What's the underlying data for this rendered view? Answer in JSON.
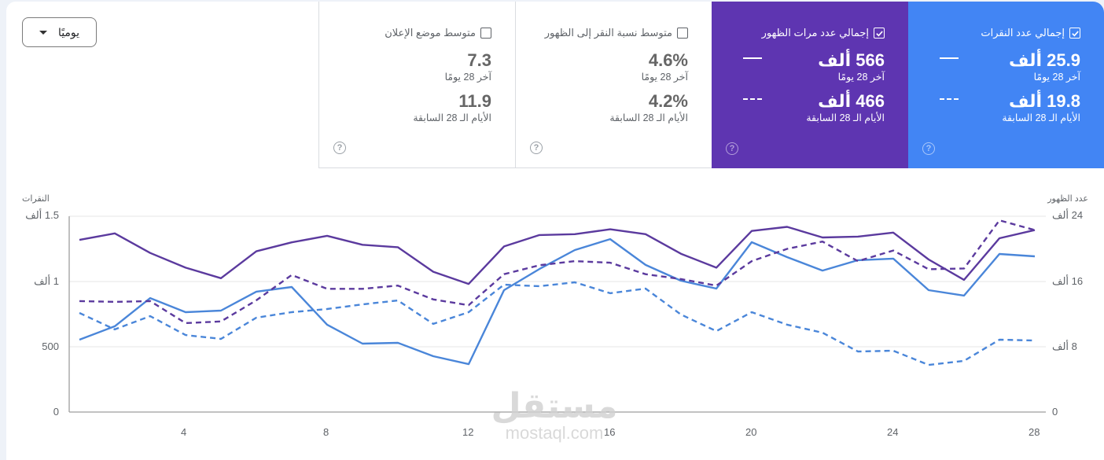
{
  "granularity_dropdown": {
    "selected": "يوميًا",
    "icon": "caret-down-icon"
  },
  "cards": [
    {
      "id": "clicks",
      "title": "إجمالي عدد النقرات",
      "checked": true,
      "color": "#4285f4",
      "current_value": "25.9 ألف",
      "current_label": "آخر 28 يومًا",
      "previous_value": "19.8 ألف",
      "previous_label": "الأيام الـ 28 السابقة",
      "help_icon": "help-circle-icon"
    },
    {
      "id": "impressions",
      "title": "إجمالي عدد مرات الظهور",
      "checked": true,
      "color": "#5e35b1",
      "current_value": "566 ألف",
      "current_label": "آخر 28 يومًا",
      "previous_value": "466 ألف",
      "previous_label": "الأيام الـ 28 السابقة",
      "help_icon": "help-circle-icon"
    },
    {
      "id": "ctr",
      "title": "متوسط نسبة النقر إلى الظهور",
      "checked": false,
      "color": "#ffffff",
      "current_value": "4.6%",
      "current_label": "آخر 28 يومًا",
      "previous_value": "4.2%",
      "previous_label": "الأيام الـ 28 السابقة",
      "help_icon": "help-circle-icon"
    },
    {
      "id": "position",
      "title": "متوسط موضع الإعلان",
      "checked": false,
      "color": "#ffffff",
      "current_value": "7.3",
      "current_label": "آخر 28 يومًا",
      "previous_value": "11.9",
      "previous_label": "الأيام الـ 28 السابقة",
      "help_icon": "help-circle-icon"
    }
  ],
  "chart_data": {
    "type": "line",
    "title": "",
    "x": [
      1,
      2,
      3,
      4,
      5,
      6,
      7,
      8,
      9,
      10,
      11,
      12,
      13,
      14,
      15,
      16,
      17,
      18,
      19,
      20,
      21,
      22,
      23,
      24,
      25,
      26,
      27,
      28
    ],
    "xticks": [
      "4",
      "8",
      "12",
      "16",
      "20",
      "24",
      "28"
    ],
    "xlabel": "",
    "ylabel_left": "النقرات",
    "ylabel_right": "عدد الظهور",
    "yticks_left": [
      "0",
      "500",
      "1 ألف",
      "1.5 ألف"
    ],
    "yticks_right": [
      "0",
      "8 ألف",
      "16 ألف",
      "24 ألف"
    ],
    "ylim_left": [
      0,
      1500
    ],
    "ylim_right": [
      0,
      24000
    ],
    "grid": true,
    "series": [
      {
        "name": "إجمالي عدد النقرات - آخر 28 يومًا",
        "axis": "left",
        "style": "solid",
        "color": "#4a86d9",
        "values": [
          554,
          657,
          873,
          765,
          777,
          922,
          958,
          669,
          524,
          530,
          428,
          367,
          934,
          1096,
          1241,
          1325,
          1127,
          1006,
          946,
          1301,
          1187,
          1084,
          1163,
          1175,
          934,
          892,
          1211,
          1193
        ]
      },
      {
        "name": "إجمالي عدد النقرات - الأيام الـ 28 السابقة",
        "axis": "left",
        "style": "dashed",
        "color": "#4a86d9",
        "values": [
          759,
          633,
          735,
          590,
          560,
          723,
          765,
          789,
          825,
          855,
          675,
          765,
          976,
          964,
          994,
          910,
          946,
          747,
          620,
          765,
          669,
          608,
          464,
          470,
          361,
          392,
          554,
          548
        ]
      },
      {
        "name": "إجمالي عدد مرات الظهور - آخر 28 يومًا",
        "axis": "right",
        "style": "solid",
        "color": "#5b3a9e",
        "values": [
          21100,
          21900,
          19500,
          17700,
          16400,
          19700,
          20800,
          21600,
          20500,
          20200,
          17200,
          15700,
          20300,
          21700,
          21800,
          22400,
          21800,
          19400,
          17700,
          22200,
          22700,
          21400,
          21500,
          22000,
          18700,
          16200,
          21300,
          22300
        ]
      },
      {
        "name": "إجمالي عدد مرات الظهور - الأيام الـ 28 السابقة",
        "axis": "right",
        "style": "dashed",
        "color": "#5b3a9e",
        "values": [
          13600,
          13500,
          13600,
          10900,
          11100,
          13700,
          16800,
          15100,
          15100,
          15500,
          13800,
          13100,
          16900,
          18000,
          18500,
          18300,
          16900,
          16300,
          15500,
          18500,
          20000,
          20900,
          18500,
          19800,
          17500,
          17600,
          23500,
          22300
        ]
      }
    ]
  },
  "watermark": {
    "arabic": "مستقل",
    "latin": "mostaql.com"
  }
}
